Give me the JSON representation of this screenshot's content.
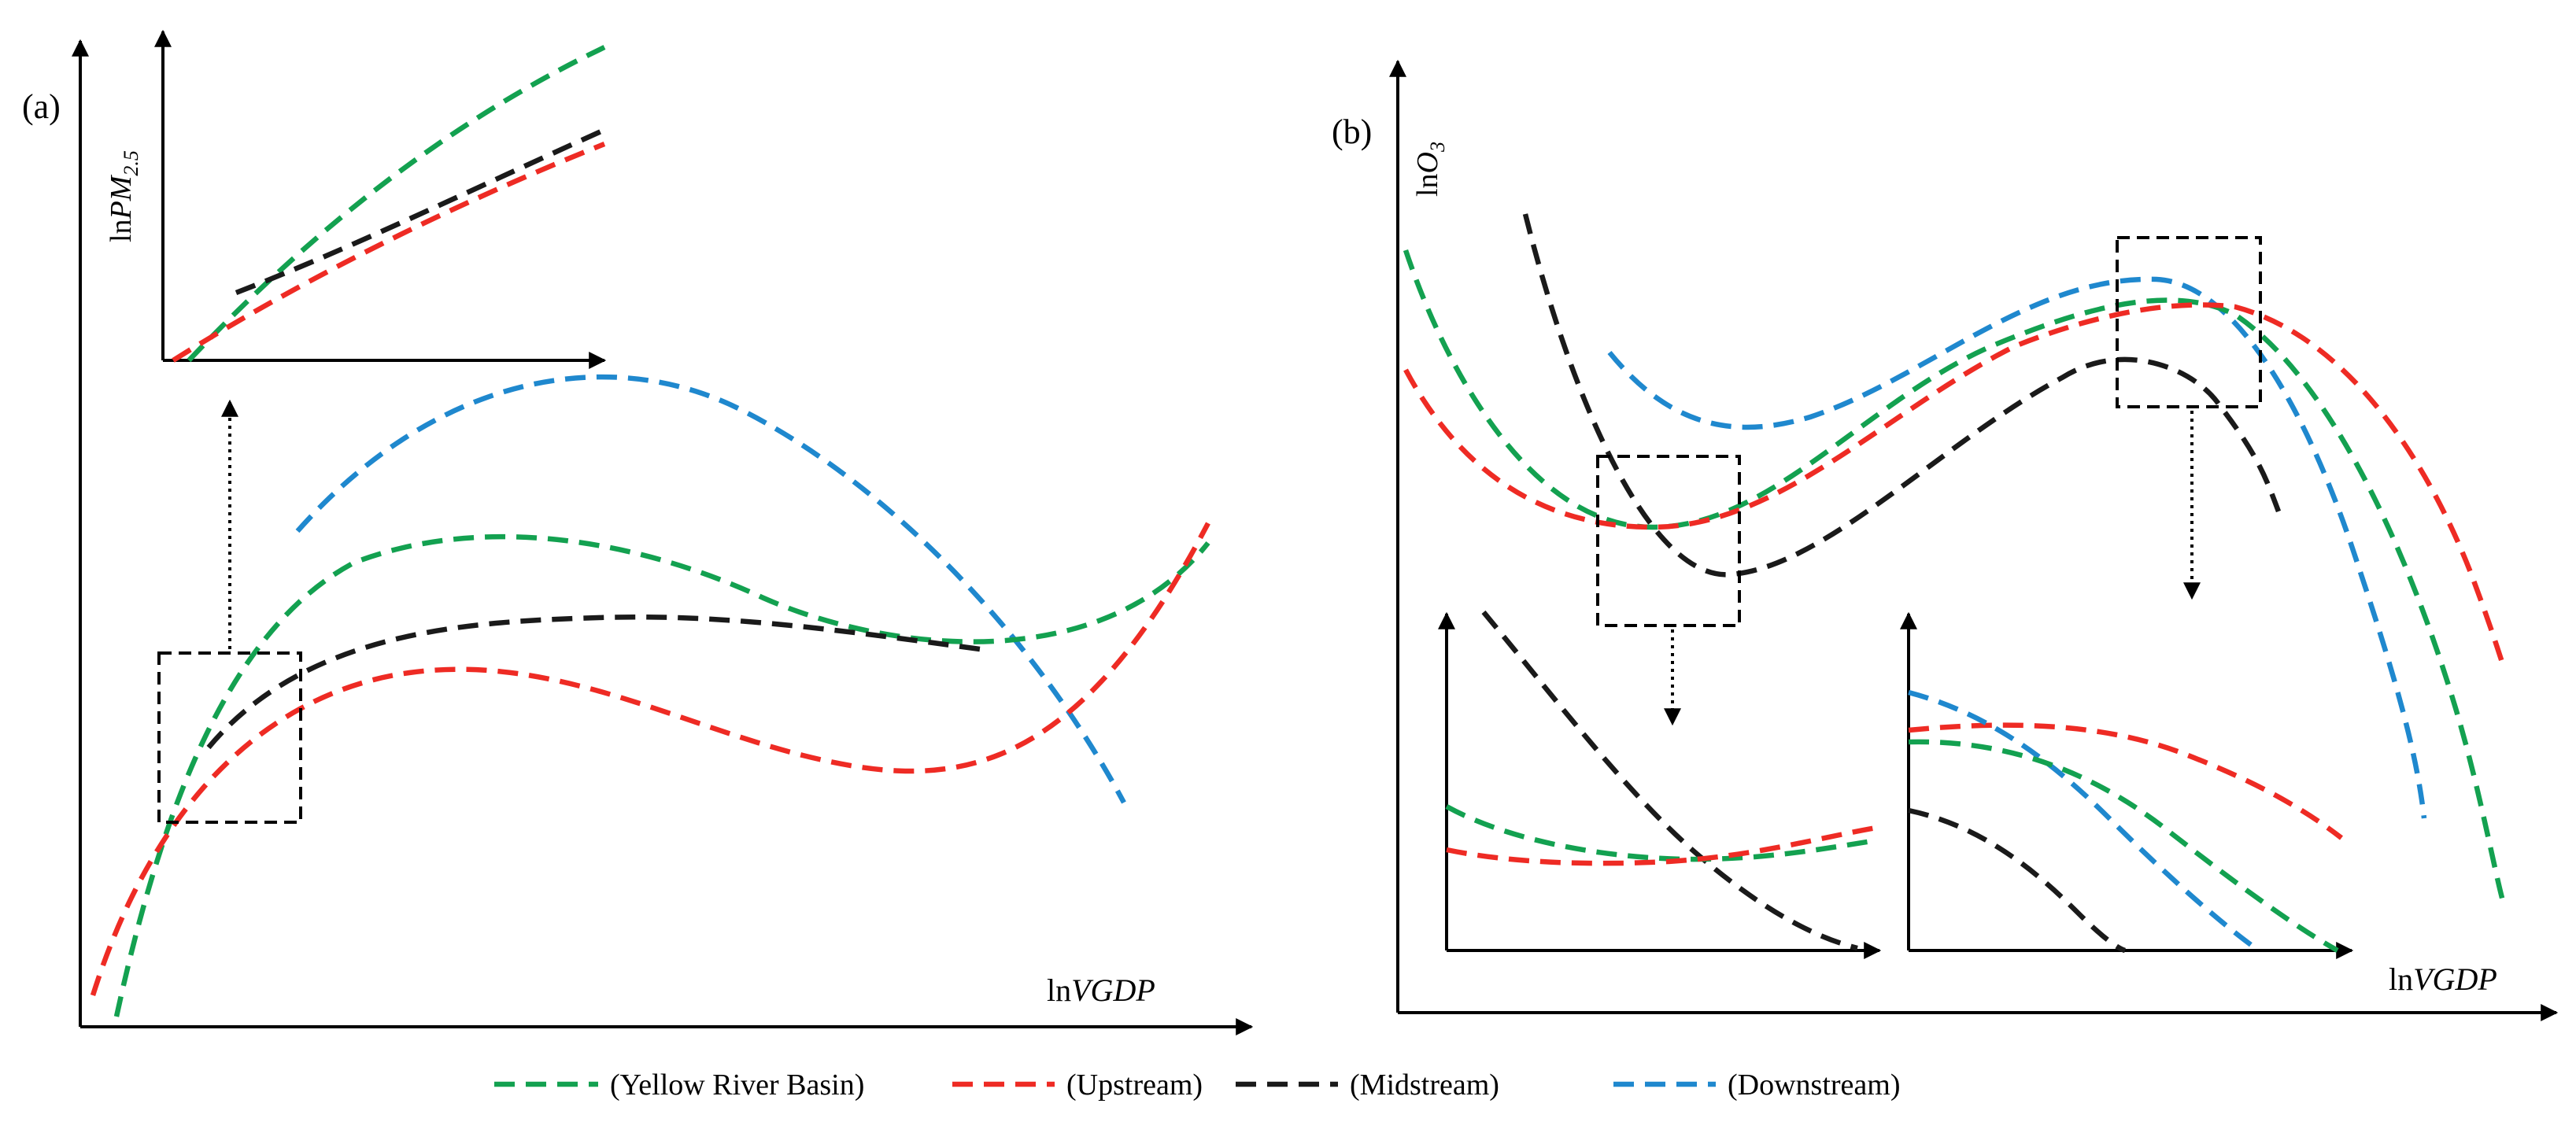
{
  "panel_a": {
    "label": "(a)",
    "y_axis": {
      "prefix": "ln",
      "main": "PM",
      "sub": "2.5"
    },
    "x_axis": {
      "prefix": "ln",
      "main": "VGDP"
    }
  },
  "panel_b": {
    "label": "(b)",
    "y_axis": {
      "prefix": "ln",
      "main": "O",
      "sub": "3"
    },
    "x_axis": {
      "prefix": "ln",
      "main": "VGDP"
    }
  },
  "legend": {
    "items": [
      {
        "key": "yellow_river_basin",
        "label": "(Yellow River Basin)",
        "color": "#13A150"
      },
      {
        "key": "upstream",
        "label": "(Upstream)",
        "color": "#EE2B24"
      },
      {
        "key": "midstream",
        "label": "(Midstream)",
        "color": "#1A1A1A"
      },
      {
        "key": "downstream",
        "label": "(Downstream)",
        "color": "#1F88CE"
      }
    ]
  },
  "colors": {
    "green": "#13A150",
    "red": "#EE2B24",
    "black": "#1A1A1A",
    "blue": "#1F88CE"
  }
}
